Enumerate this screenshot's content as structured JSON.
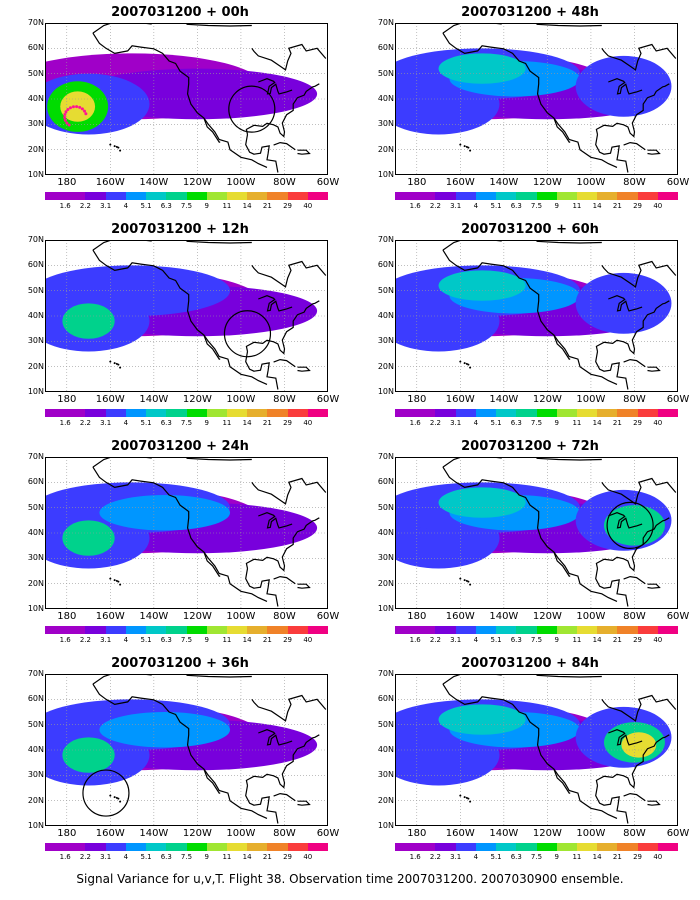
{
  "figure": {
    "caption": "Signal Variance for u,v,T. Flight 38. Observation time 2007031200. 2007030900 ensemble."
  },
  "axes": {
    "lat_labels": [
      "70N",
      "60N",
      "50N",
      "40N",
      "30N",
      "20N",
      "10N"
    ],
    "lon_labels": [
      "180",
      "160W",
      "140W",
      "120W",
      "100W",
      "80W",
      "60W"
    ]
  },
  "colorbar": {
    "labels": [
      "1.6",
      "2.2",
      "3.1",
      "4",
      "5.1",
      "6.3",
      "7.5",
      "9",
      "11",
      "14",
      "21",
      "29",
      "40"
    ],
    "colors": [
      "#a000c8",
      "#7800dc",
      "#3c3cff",
      "#0096ff",
      "#00c8c8",
      "#00d28c",
      "#00dc00",
      "#a0e632",
      "#e6dc32",
      "#e6af2d",
      "#f08228",
      "#fa3c3c",
      "#f00082"
    ]
  },
  "panels": [
    {
      "title": "2007031200 + 00h",
      "intensity": 0.35,
      "circle": {
        "lon": -95,
        "lat": 36
      },
      "points": true
    },
    {
      "title": "2007031200 + 48h",
      "intensity": 0.75,
      "circle": null,
      "points": false
    },
    {
      "title": "2007031200 + 12h",
      "intensity": 0.45,
      "circle": {
        "lon": -97,
        "lat": 33
      },
      "points": false
    },
    {
      "title": "2007031200 + 60h",
      "intensity": 0.8,
      "circle": null,
      "points": false
    },
    {
      "title": "2007031200 + 24h",
      "intensity": 0.55,
      "circle": null,
      "points": false
    },
    {
      "title": "2007031200 + 72h",
      "intensity": 0.85,
      "circle": {
        "lon": -82,
        "lat": 43
      },
      "points": false
    },
    {
      "title": "2007031200 + 36h",
      "intensity": 0.6,
      "circle": {
        "lon": -162,
        "lat": 23
      },
      "points": false
    },
    {
      "title": "2007031200 + 84h",
      "intensity": 0.95,
      "circle": null,
      "points": false
    }
  ]
}
